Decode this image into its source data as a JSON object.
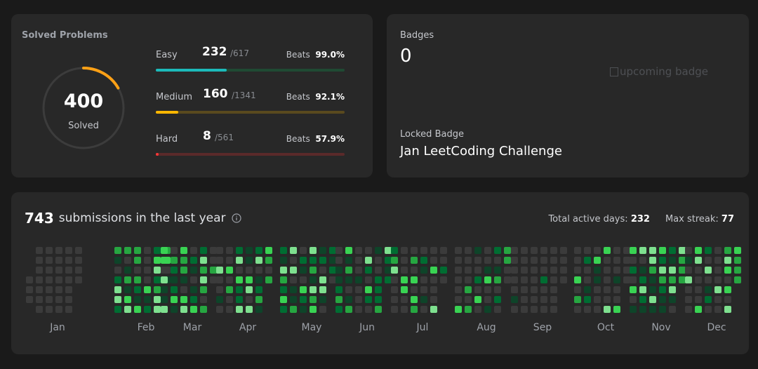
{
  "solved": {
    "title": "Solved Problems",
    "total": "400",
    "total_label": "Solved",
    "difficulties": [
      {
        "name": "Easy",
        "solved": "232",
        "total": "/617",
        "beats_label": "Beats",
        "beats_value": "99.0%",
        "fraction": 0.376,
        "color": "#1cbaba",
        "track": "#1f4a33"
      },
      {
        "name": "Medium",
        "solved": "160",
        "total": "/1341",
        "beats_label": "Beats",
        "beats_value": "92.1%",
        "fraction": 0.119,
        "color": "#ffb700",
        "track": "#5a4a1e"
      },
      {
        "name": "Hard",
        "solved": "8",
        "total": "/561",
        "beats_label": "Beats",
        "beats_value": "57.9%",
        "fraction": 0.014,
        "color": "#f63737",
        "track": "#5a2a2a"
      }
    ]
  },
  "badges": {
    "label": "Badges",
    "count": "0",
    "upcoming_alt": "upcoming badge",
    "locked_label": "Locked Badge",
    "locked_name": "Jan LeetCoding Challenge"
  },
  "submissions": {
    "count": "743",
    "text": "submissions in the last year",
    "active_label": "Total active days:",
    "active_value": "232",
    "streak_label": "Max streak:",
    "streak_value": "77",
    "months": [
      "Jan",
      "Feb",
      "Mar",
      "Apr",
      "May",
      "Jun",
      "Jul",
      "Aug",
      "Sep",
      "Oct",
      "Nov",
      "Dec"
    ]
  },
  "colors": {
    "empty": "#3b3b3b",
    "l1": "#0e4429",
    "l2": "#006d32",
    "l3": "#26a641",
    "l4": "#39d353",
    "l5": "#7ee08f"
  }
}
